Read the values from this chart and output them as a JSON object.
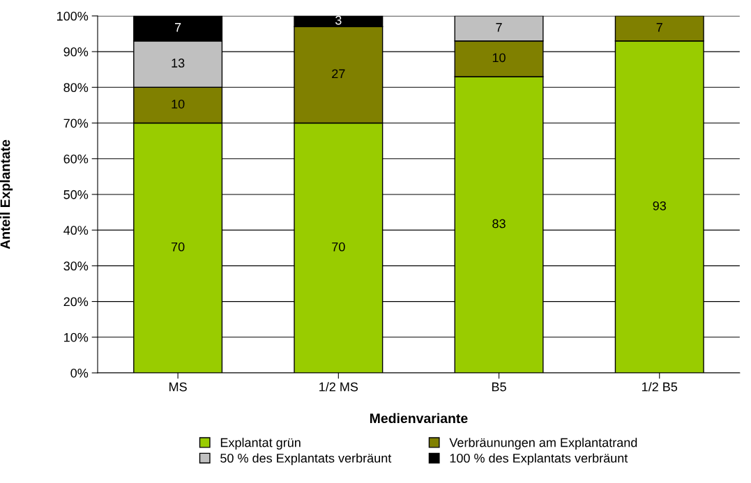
{
  "chart_data": {
    "type": "bar",
    "stacked": true,
    "xlabel": "Medienvariante",
    "ylabel": "Anteil Explantate",
    "categories": [
      "MS",
      "1/2 MS",
      "B5",
      "1/2 B5"
    ],
    "series": [
      {
        "name": "Explantat grün",
        "color": "#99cc00",
        "values": [
          70,
          70,
          83,
          93
        ]
      },
      {
        "name": "Verbräunungen am Explantatrand",
        "color": "#808000",
        "values": [
          10,
          27,
          10,
          7
        ]
      },
      {
        "name": "50 % des Explantats verbräunt",
        "color": "#c0c0c0",
        "values": [
          13,
          null,
          7,
          null
        ]
      },
      {
        "name": "100 % des Explantats verbräunt",
        "color": "#000000",
        "values": [
          7,
          3,
          null,
          null
        ]
      }
    ],
    "ylim": [
      0,
      100
    ],
    "yticks": [
      {
        "value": 0,
        "label": "0%"
      },
      {
        "value": 10,
        "label": "10%"
      },
      {
        "value": 20,
        "label": "20%"
      },
      {
        "value": 30,
        "label": "30%"
      },
      {
        "value": 40,
        "label": "40%"
      },
      {
        "value": 50,
        "label": "50%"
      },
      {
        "value": 60,
        "label": "60%"
      },
      {
        "value": 70,
        "label": "70%"
      },
      {
        "value": 80,
        "label": "80%"
      },
      {
        "value": 90,
        "label": "90%"
      },
      {
        "value": 100,
        "label": "100%"
      }
    ],
    "grid": "y",
    "legend": "bottom",
    "data_labels": true
  }
}
